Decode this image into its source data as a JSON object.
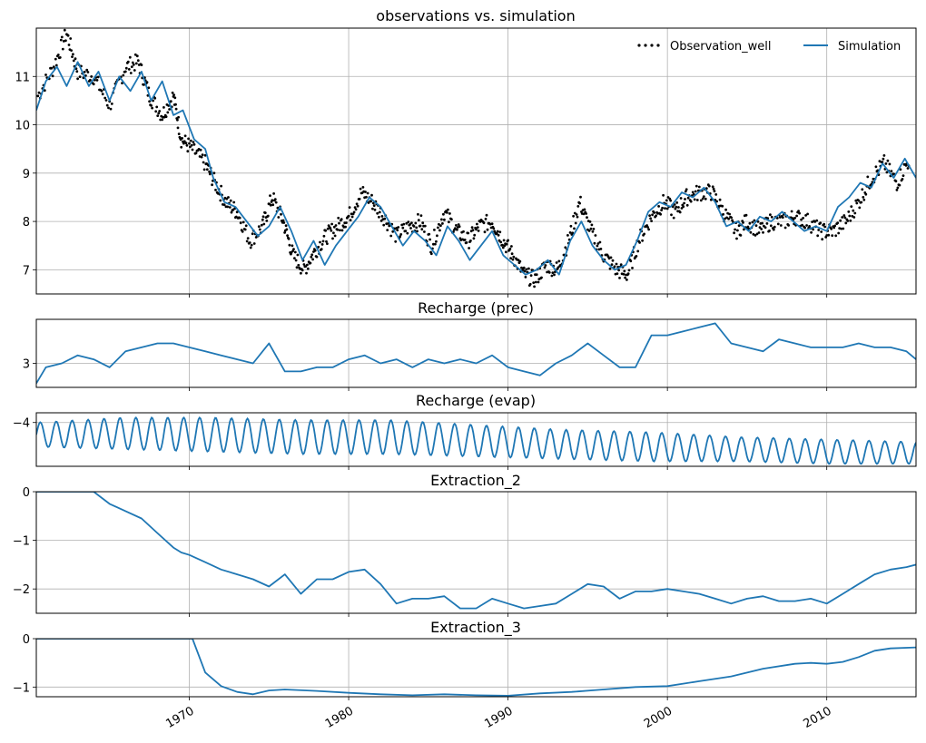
{
  "figure": {
    "colors": {
      "simulation": "#1f77b4",
      "observation": "#000000",
      "grid": "#b0b0b0",
      "axes": "#000000"
    },
    "x_ticks": [
      "1970",
      "1980",
      "1990",
      "2000",
      "2010"
    ],
    "x_range_years": [
      1960.4,
      2015.6
    ]
  },
  "chart_data": [
    {
      "type": "line",
      "title": "observations vs. simulation",
      "ylim": [
        6.5,
        12.0
      ],
      "y_ticks": [
        7,
        8,
        9,
        10,
        11
      ],
      "grid": true,
      "legend": {
        "placement": "top-right",
        "columns": 2,
        "entries": [
          "Observation_well",
          "Simulation"
        ]
      },
      "series": [
        {
          "name": "Observation_well",
          "style": "dots",
          "x": [
            1960.5,
            1961.5,
            1962.3,
            1963,
            1964,
            1965,
            1966,
            1966.8,
            1967.5,
            1968.3,
            1969,
            1969.5,
            1970.2,
            1971,
            1971.6,
            1972.3,
            1973,
            1973.8,
            1974.6,
            1975.2,
            1975.9,
            1976.5,
            1977.2,
            1977.9,
            1978.6,
            1979.3,
            1980,
            1980.8,
            1981.5,
            1982.2,
            1983,
            1983.8,
            1984.5,
            1985.2,
            1986,
            1986.8,
            1987.5,
            1988.2,
            1989,
            1989.7,
            1990.3,
            1991,
            1991.7,
            1992.4,
            1993.1,
            1993.8,
            1994.5,
            1995.2,
            1996,
            1996.8,
            1997.5,
            1998.2,
            1999,
            1999.8,
            2000.5,
            2001.2,
            2002,
            2002.8,
            2003.5,
            2004.3,
            2005,
            2005.8,
            2006.5,
            2007.3,
            2008,
            2008.8,
            2009.6,
            2010.4,
            2011.2,
            2012,
            2012.8,
            2013.6,
            2014.4,
            2015.2
          ],
          "y": [
            10.6,
            11.2,
            11.9,
            11.1,
            11.0,
            10.4,
            11.2,
            11.3,
            10.6,
            10.2,
            10.6,
            9.7,
            9.5,
            9.2,
            8.8,
            8.4,
            8.2,
            7.6,
            7.9,
            8.5,
            8.0,
            7.3,
            7.0,
            7.4,
            7.7,
            7.9,
            8.1,
            8.6,
            8.4,
            8.1,
            7.7,
            7.9,
            8.0,
            7.5,
            8.2,
            7.8,
            7.6,
            7.9,
            8.0,
            7.6,
            7.3,
            6.9,
            6.8,
            7.1,
            7.0,
            7.6,
            8.4,
            7.8,
            7.3,
            7.0,
            6.9,
            7.6,
            8.1,
            8.4,
            8.2,
            8.5,
            8.6,
            8.6,
            8.2,
            7.8,
            8.0,
            7.8,
            8.0,
            8.0,
            8.1,
            8.0,
            7.8,
            7.8,
            8.0,
            8.4,
            8.9,
            9.2,
            8.8,
            9.3
          ]
        },
        {
          "name": "Simulation",
          "style": "line",
          "x": [
            1960.4,
            1961,
            1961.7,
            1962.3,
            1963,
            1963.7,
            1964.3,
            1965,
            1965.6,
            1966.3,
            1967,
            1967.6,
            1968.3,
            1969,
            1969.6,
            1970.3,
            1971,
            1971.5,
            1972.2,
            1972.9,
            1973.6,
            1974.3,
            1975,
            1975.7,
            1976.4,
            1977.1,
            1977.8,
            1978.5,
            1979.2,
            1979.9,
            1980.6,
            1981.3,
            1982,
            1982.7,
            1983.4,
            1984.1,
            1984.8,
            1985.5,
            1986.2,
            1986.9,
            1987.6,
            1988.3,
            1989,
            1989.7,
            1990.4,
            1991.1,
            1991.8,
            1992.5,
            1993.2,
            1993.9,
            1994.6,
            1995.3,
            1996,
            1996.7,
            1997.4,
            1998.1,
            1998.8,
            1999.5,
            2000.2,
            2000.9,
            2001.6,
            2002.3,
            2003,
            2003.7,
            2004.4,
            2005.1,
            2005.8,
            2006.5,
            2007.2,
            2007.9,
            2008.6,
            2009.3,
            2010,
            2010.7,
            2011.4,
            2012.1,
            2012.8,
            2013.5,
            2014.2,
            2014.9,
            2015.6
          ],
          "y": [
            10.3,
            10.9,
            11.2,
            10.8,
            11.3,
            10.8,
            11.1,
            10.5,
            11.0,
            10.7,
            11.1,
            10.5,
            10.9,
            10.2,
            10.3,
            9.7,
            9.5,
            8.9,
            8.4,
            8.3,
            8.0,
            7.7,
            7.9,
            8.3,
            7.8,
            7.2,
            7.6,
            7.1,
            7.5,
            7.8,
            8.1,
            8.5,
            8.3,
            7.9,
            7.5,
            7.8,
            7.6,
            7.3,
            7.9,
            7.6,
            7.2,
            7.5,
            7.8,
            7.3,
            7.1,
            6.9,
            7.0,
            7.2,
            6.9,
            7.6,
            8.0,
            7.5,
            7.2,
            7.0,
            7.1,
            7.6,
            8.2,
            8.4,
            8.3,
            8.6,
            8.5,
            8.7,
            8.4,
            7.9,
            8.0,
            7.8,
            8.1,
            8.0,
            8.2,
            8.0,
            7.8,
            7.9,
            7.8,
            8.3,
            8.5,
            8.8,
            8.7,
            9.2,
            8.9,
            9.3,
            8.9
          ]
        }
      ]
    },
    {
      "type": "line",
      "title": "Recharge (prec)",
      "ylim": [
        2.4,
        4.1
      ],
      "y_ticks": [
        3
      ],
      "grid": true,
      "series": [
        {
          "x": [
            1960.4,
            1961,
            1962,
            1963,
            1964,
            1965,
            1966,
            1967,
            1968,
            1969,
            1970,
            1971,
            1972,
            1973,
            1974,
            1975,
            1976,
            1977,
            1978,
            1979,
            1980,
            1981,
            1982,
            1983,
            1984,
            1985,
            1986,
            1987,
            1988,
            1989,
            1990,
            1991,
            1992,
            1993,
            1994,
            1995,
            1996,
            1997,
            1998,
            1999,
            2000,
            2001,
            2002,
            2003,
            2004,
            2005,
            2006,
            2007,
            2008,
            2009,
            2010,
            2011,
            2012,
            2013,
            2014,
            2015,
            2015.6
          ],
          "y": [
            2.5,
            2.9,
            3.0,
            3.2,
            3.1,
            2.9,
            3.3,
            3.4,
            3.5,
            3.5,
            3.4,
            3.3,
            3.2,
            3.1,
            3.0,
            3.5,
            2.8,
            2.8,
            2.9,
            2.9,
            3.1,
            3.2,
            3.0,
            3.1,
            2.9,
            3.1,
            3.0,
            3.1,
            3.0,
            3.2,
            2.9,
            2.8,
            2.7,
            3.0,
            3.2,
            3.5,
            3.2,
            2.9,
            2.9,
            3.7,
            3.7,
            3.8,
            3.9,
            4.0,
            3.5,
            3.4,
            3.3,
            3.6,
            3.5,
            3.4,
            3.4,
            3.4,
            3.5,
            3.4,
            3.4,
            3.3,
            3.1
          ]
        }
      ]
    },
    {
      "type": "line",
      "title": "Recharge (evap)",
      "ylim": [
        -5.8,
        -3.6
      ],
      "y_ticks": [
        -4
      ],
      "grid": true,
      "series": [
        {
          "x_start": 1960.4,
          "x_end": 2015.6,
          "cycle_years": 1,
          "upper": [
            -4.0,
            -3.8,
            -3.8,
            -3.9,
            -3.9,
            -4.1,
            -4.3,
            -4.4,
            -4.6,
            -4.7,
            -4.8
          ],
          "lower": [
            -5.0,
            -5.1,
            -5.2,
            -5.3,
            -5.3,
            -5.4,
            -5.5,
            -5.6,
            -5.6,
            -5.7,
            -5.7
          ]
        }
      ]
    },
    {
      "type": "line",
      "title": "Extraction_2",
      "ylim": [
        -2.5,
        0
      ],
      "y_ticks": [
        0,
        -1,
        -2
      ],
      "grid": true,
      "series": [
        {
          "x": [
            1960.4,
            1962,
            1964,
            1965,
            1966,
            1967,
            1968,
            1969,
            1969.5,
            1970,
            1971,
            1972,
            1973,
            1974,
            1975,
            1976,
            1977,
            1978,
            1979,
            1980,
            1981,
            1982,
            1983,
            1984,
            1985,
            1986,
            1987,
            1988,
            1989,
            1990,
            1991,
            1992,
            1993,
            1994,
            1995,
            1996,
            1997,
            1998,
            1999,
            2000,
            2001,
            2002,
            2003,
            2004,
            2005,
            2006,
            2007,
            2008,
            2009,
            2010,
            2011,
            2012,
            2013,
            2014,
            2015,
            2015.6
          ],
          "y": [
            0,
            0,
            0,
            -0.25,
            -0.4,
            -0.55,
            -0.85,
            -1.15,
            -1.25,
            -1.3,
            -1.45,
            -1.6,
            -1.7,
            -1.8,
            -1.95,
            -1.7,
            -2.1,
            -1.8,
            -1.8,
            -1.65,
            -1.6,
            -1.9,
            -2.3,
            -2.2,
            -2.2,
            -2.15,
            -2.4,
            -2.4,
            -2.2,
            -2.3,
            -2.4,
            -2.35,
            -2.3,
            -2.1,
            -1.9,
            -1.95,
            -2.2,
            -2.05,
            -2.05,
            -2.0,
            -2.05,
            -2.1,
            -2.2,
            -2.3,
            -2.2,
            -2.15,
            -2.25,
            -2.25,
            -2.2,
            -2.3,
            -2.1,
            -1.9,
            -1.7,
            -1.6,
            -1.55,
            -1.5
          ]
        }
      ]
    },
    {
      "type": "line",
      "title": "Extraction_3",
      "ylim": [
        -1.2,
        0
      ],
      "y_ticks": [
        0,
        -1
      ],
      "grid": true,
      "series": [
        {
          "x": [
            1960.4,
            1970.2,
            1971,
            1972,
            1973,
            1974,
            1975,
            1976,
            1978,
            1980,
            1982,
            1984,
            1986,
            1988,
            1990,
            1992,
            1994,
            1996,
            1998,
            2000,
            2002,
            2004,
            2006,
            2008,
            2009,
            2010,
            2011,
            2012,
            2013,
            2014,
            2015.6
          ],
          "y": [
            0,
            0,
            -0.7,
            -0.98,
            -1.1,
            -1.15,
            -1.07,
            -1.05,
            -1.08,
            -1.12,
            -1.15,
            -1.17,
            -1.15,
            -1.17,
            -1.18,
            -1.13,
            -1.1,
            -1.05,
            -1.0,
            -0.98,
            -0.88,
            -0.78,
            -0.62,
            -0.52,
            -0.5,
            -0.52,
            -0.48,
            -0.38,
            -0.25,
            -0.2,
            -0.18
          ]
        }
      ]
    }
  ]
}
